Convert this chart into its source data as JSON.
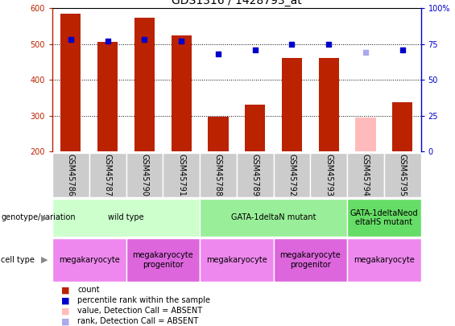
{
  "title": "GDS1316 / 1428793_at",
  "samples": [
    "GSM45786",
    "GSM45787",
    "GSM45790",
    "GSM45791",
    "GSM45788",
    "GSM45789",
    "GSM45792",
    "GSM45793",
    "GSM45794",
    "GSM45795"
  ],
  "bar_values": [
    585,
    507,
    573,
    524,
    297,
    332,
    461,
    461,
    295,
    337
  ],
  "bar_colors": [
    "#bb2200",
    "#bb2200",
    "#bb2200",
    "#bb2200",
    "#bb2200",
    "#bb2200",
    "#bb2200",
    "#bb2200",
    "#ffbbbb",
    "#bb2200"
  ],
  "rank_pct": [
    78,
    77,
    78,
    77,
    68,
    71,
    75,
    75,
    69,
    71
  ],
  "rank_colors": [
    "#0000cc",
    "#0000cc",
    "#0000cc",
    "#0000cc",
    "#0000cc",
    "#0000cc",
    "#0000cc",
    "#0000cc",
    "#aaaaee",
    "#0000cc"
  ],
  "ylim_left": [
    200,
    600
  ],
  "ylim_right": [
    0,
    100
  ],
  "yticks_left": [
    200,
    300,
    400,
    500,
    600
  ],
  "yticks_right": [
    0,
    25,
    50,
    75,
    100
  ],
  "right_labels": [
    "0",
    "25",
    "50",
    "75",
    "100%"
  ],
  "genotype_groups": [
    {
      "label": "wild type",
      "start": 0,
      "end": 3,
      "color": "#ccffcc"
    },
    {
      "label": "GATA-1deltaN mutant",
      "start": 4,
      "end": 7,
      "color": "#99ee99"
    },
    {
      "label": "GATA-1deltaNeod\neltaHS mutant",
      "start": 8,
      "end": 9,
      "color": "#66dd66"
    }
  ],
  "cell_type_groups": [
    {
      "label": "megakaryocyte",
      "start": 0,
      "end": 1,
      "color": "#ee88ee"
    },
    {
      "label": "megakaryocyte\nprogenitor",
      "start": 2,
      "end": 3,
      "color": "#dd66dd"
    },
    {
      "label": "megakaryocyte",
      "start": 4,
      "end": 5,
      "color": "#ee88ee"
    },
    {
      "label": "megakaryocyte\nprogenitor",
      "start": 6,
      "end": 7,
      "color": "#dd66dd"
    },
    {
      "label": "megakaryocyte",
      "start": 8,
      "end": 9,
      "color": "#ee88ee"
    }
  ],
  "legend_items": [
    {
      "label": "count",
      "color": "#bb2200"
    },
    {
      "label": "percentile rank within the sample",
      "color": "#0000cc"
    },
    {
      "label": "value, Detection Call = ABSENT",
      "color": "#ffbbbb"
    },
    {
      "label": "rank, Detection Call = ABSENT",
      "color": "#aaaaee"
    }
  ],
  "bg_color": "#ffffff",
  "label_area_color": "#dddddd",
  "bar_width": 0.55,
  "title_fontsize": 10,
  "tick_fontsize": 7,
  "annotation_fontsize": 7
}
